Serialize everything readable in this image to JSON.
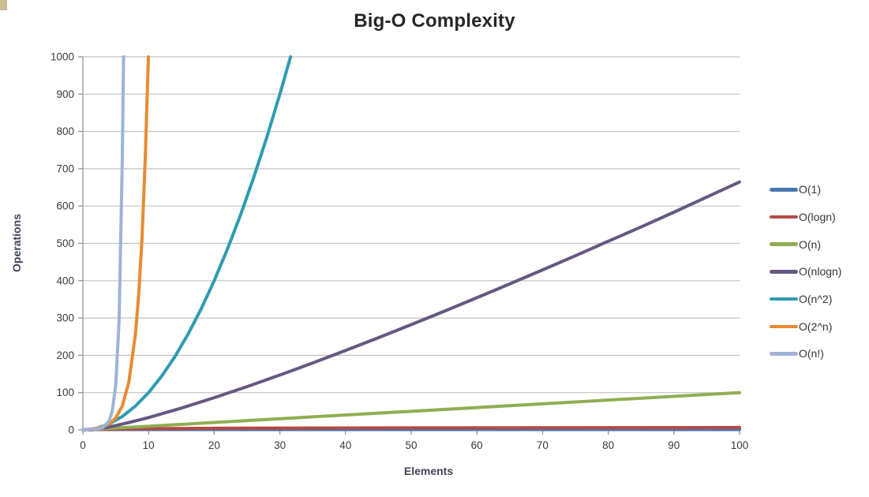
{
  "header": {
    "title": "Big-O Complexity"
  },
  "chart_data": {
    "type": "line",
    "title": "Big-O Complexity",
    "xlabel": "Elements",
    "ylabel": "Operations",
    "xlim": [
      0,
      100
    ],
    "ylim": [
      0,
      1000
    ],
    "x_ticks": [
      0,
      10,
      20,
      30,
      40,
      50,
      60,
      70,
      80,
      90,
      100
    ],
    "y_ticks": [
      0,
      100,
      200,
      300,
      400,
      500,
      600,
      700,
      800,
      900,
      1000
    ],
    "grid": "horizontal-only",
    "gridline_color": "#c3c3c3",
    "axis_color": "#8c8c8c",
    "tick_label_color": "#3a3a3a",
    "legend_position": "right",
    "series": [
      {
        "name": "O(1)",
        "color": "#4977ad",
        "points": [
          [
            0,
            1
          ],
          [
            100,
            1
          ]
        ]
      },
      {
        "name": "O(logn)",
        "color": "#b54946",
        "points": [
          [
            1,
            0
          ],
          [
            1.5,
            0.58
          ],
          [
            2,
            1
          ],
          [
            3,
            1.58
          ],
          [
            4,
            2
          ],
          [
            6,
            2.58
          ],
          [
            8,
            3
          ],
          [
            12,
            3.58
          ],
          [
            16,
            4
          ],
          [
            24,
            4.58
          ],
          [
            32,
            5
          ],
          [
            48,
            5.58
          ],
          [
            64,
            6
          ],
          [
            100,
            6.64
          ]
        ]
      },
      {
        "name": "O(n)",
        "color": "#8fae52",
        "points": [
          [
            0,
            0
          ],
          [
            100,
            100
          ]
        ]
      },
      {
        "name": "O(nlogn)",
        "color": "#665784",
        "points": [
          [
            1,
            0
          ],
          [
            2,
            2
          ],
          [
            3,
            4.8
          ],
          [
            5,
            11.6
          ],
          [
            8,
            24
          ],
          [
            10,
            33.2
          ],
          [
            15,
            58.6
          ],
          [
            20,
            86.4
          ],
          [
            25,
            116.1
          ],
          [
            30,
            147.2
          ],
          [
            35,
            179.5
          ],
          [
            40,
            212.9
          ],
          [
            45,
            247.1
          ],
          [
            50,
            282.2
          ],
          [
            55,
            317.9
          ],
          [
            60,
            354.4
          ],
          [
            65,
            391.3
          ],
          [
            70,
            428.9
          ],
          [
            75,
            466.9
          ],
          [
            80,
            505.8
          ],
          [
            85,
            543.9
          ],
          [
            90,
            583.6
          ],
          [
            95,
            624.1
          ],
          [
            100,
            664.4
          ]
        ]
      },
      {
        "name": "O(n^2)",
        "color": "#2f9bb1",
        "points": [
          [
            0,
            0
          ],
          [
            2,
            4
          ],
          [
            4,
            16
          ],
          [
            6,
            36
          ],
          [
            8,
            64
          ],
          [
            10,
            100
          ],
          [
            12,
            144
          ],
          [
            14,
            196
          ],
          [
            16,
            256
          ],
          [
            18,
            324
          ],
          [
            20,
            400
          ],
          [
            22,
            484
          ],
          [
            24,
            576
          ],
          [
            26,
            676
          ],
          [
            28,
            784
          ],
          [
            30,
            900
          ],
          [
            31.62,
            1000
          ]
        ]
      },
      {
        "name": "O(2^n)",
        "color": "#e78b33",
        "points": [
          [
            0,
            1
          ],
          [
            1,
            2
          ],
          [
            2,
            4
          ],
          [
            3,
            8
          ],
          [
            4,
            16
          ],
          [
            5,
            32
          ],
          [
            6,
            64
          ],
          [
            7,
            128
          ],
          [
            8,
            256
          ],
          [
            8.5,
            362
          ],
          [
            9,
            512
          ],
          [
            9.5,
            724
          ],
          [
            9.97,
            1000
          ]
        ]
      },
      {
        "name": "O(n!)",
        "color": "#9fb3d7",
        "points": [
          [
            0,
            1
          ],
          [
            1,
            1
          ],
          [
            2,
            2
          ],
          [
            3,
            6
          ],
          [
            4,
            24
          ],
          [
            4.5,
            52
          ],
          [
            5,
            120
          ],
          [
            5.5,
            288
          ],
          [
            6,
            720
          ],
          [
            6.2,
            1000
          ]
        ]
      }
    ]
  }
}
